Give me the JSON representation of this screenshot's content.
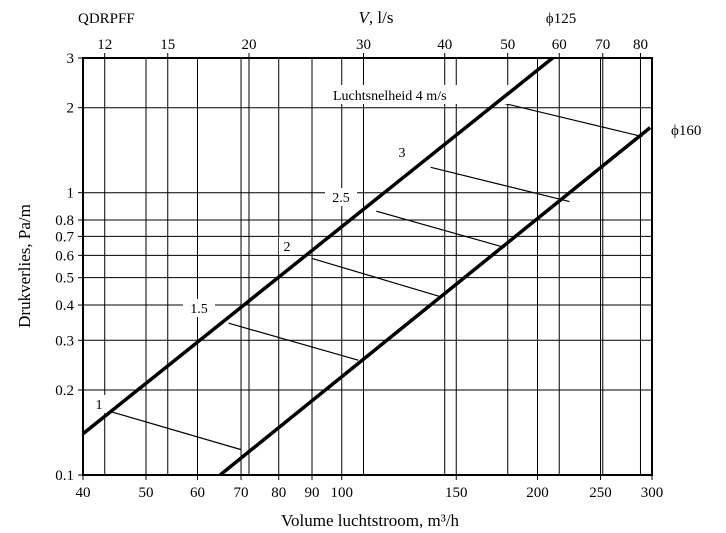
{
  "chart_data": {
    "type": "line",
    "grid": true,
    "scale": {
      "x": "log",
      "y": "log"
    },
    "top_left_label": "QDRPFF",
    "xlabel": "Volume luchtstroom, m³/h",
    "ylabel": "Drukverlies, Pa/m",
    "top_axis_label": {
      "symbol": "V",
      "unit": ", l/s"
    },
    "xlim": [
      40,
      300
    ],
    "ylim": [
      0.1,
      3
    ],
    "x_ticks": [
      "40",
      "50",
      "60",
      "70",
      "80",
      "90",
      "100",
      "150",
      "200",
      "250",
      "300"
    ],
    "x_tick_values": [
      40,
      50,
      60,
      70,
      80,
      90,
      100,
      150,
      200,
      250,
      300
    ],
    "top_ticks": [
      "12",
      "15",
      "20",
      "30",
      "40",
      "50",
      "60",
      "70",
      "80"
    ],
    "top_tick_values": [
      12,
      15,
      20,
      30,
      40,
      50,
      60,
      70,
      80
    ],
    "y_ticks": [
      "0.1",
      "0.2",
      "0.3",
      "0.4",
      "0.5",
      "0.6",
      "0.7",
      "0.8",
      "1",
      "2",
      "3"
    ],
    "y_tick_values": [
      0.1,
      0.2,
      0.3,
      0.4,
      0.5,
      0.6,
      0.7,
      0.8,
      1,
      2,
      3
    ],
    "series": [
      {
        "name": "ϕ125",
        "x": [
          40,
          211
        ],
        "y": [
          0.14,
          3.0
        ]
      },
      {
        "name": "ϕ160",
        "x": [
          65,
          298
        ],
        "y": [
          0.1,
          1.7
        ]
      }
    ],
    "velocity_label": "Luchtsnelheid 4 m/s",
    "velocity_lines": [
      {
        "label": "1",
        "x": [
          44,
          70
        ],
        "y": [
          0.168,
          0.123
        ]
      },
      {
        "label": "1.5",
        "x": [
          67,
          106
        ],
        "y": [
          0.345,
          0.255
        ]
      },
      {
        "label": "2",
        "x": [
          90,
          141
        ],
        "y": [
          0.585,
          0.43
        ]
      },
      {
        "label": "2.5",
        "x": [
          113,
          178
        ],
        "y": [
          0.86,
          0.64
        ]
      },
      {
        "label": "3",
        "x": [
          137,
          224
        ],
        "y": [
          1.23,
          0.93
        ]
      },
      {
        "label": "4",
        "x": [
          178,
          290
        ],
        "y": [
          2.07,
          1.58
        ]
      }
    ],
    "velocity_labels_shown": [
      "1",
      "1.5",
      "2",
      "2.5",
      "3"
    ]
  }
}
